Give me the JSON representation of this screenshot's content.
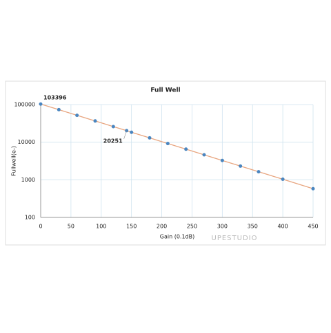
{
  "chart_data": {
    "type": "line",
    "title": "Full Well",
    "x_label": "Gain (0.1dB)",
    "y_label": "Fullwell(e-)",
    "x": [
      0,
      30,
      60,
      90,
      120,
      142,
      150,
      180,
      210,
      240,
      270,
      300,
      330,
      360,
      400,
      450
    ],
    "series": [
      {
        "name": "Full Well",
        "color": "#4a86c0",
        "line_color": "#e8a57f",
        "values": [
          103396,
          73195,
          51821,
          36686,
          25972,
          20251,
          18387,
          13017,
          9215,
          6524,
          4619,
          3270,
          2315,
          1639,
          1034,
          581
        ],
        "value_labels": [
          "103396",
          null,
          null,
          null,
          null,
          "20251",
          null,
          null,
          null,
          null,
          null,
          null,
          null,
          null,
          null,
          null
        ]
      }
    ],
    "xlim": [
      0,
      450
    ],
    "xticks": [
      0,
      50,
      100,
      150,
      200,
      250,
      300,
      350,
      400,
      450
    ],
    "ylim": [
      100,
      100000
    ],
    "yticks": [
      100,
      1000,
      10000,
      100000
    ],
    "log_y": true,
    "grid": true,
    "watermark": "UPESTUDIO"
  }
}
